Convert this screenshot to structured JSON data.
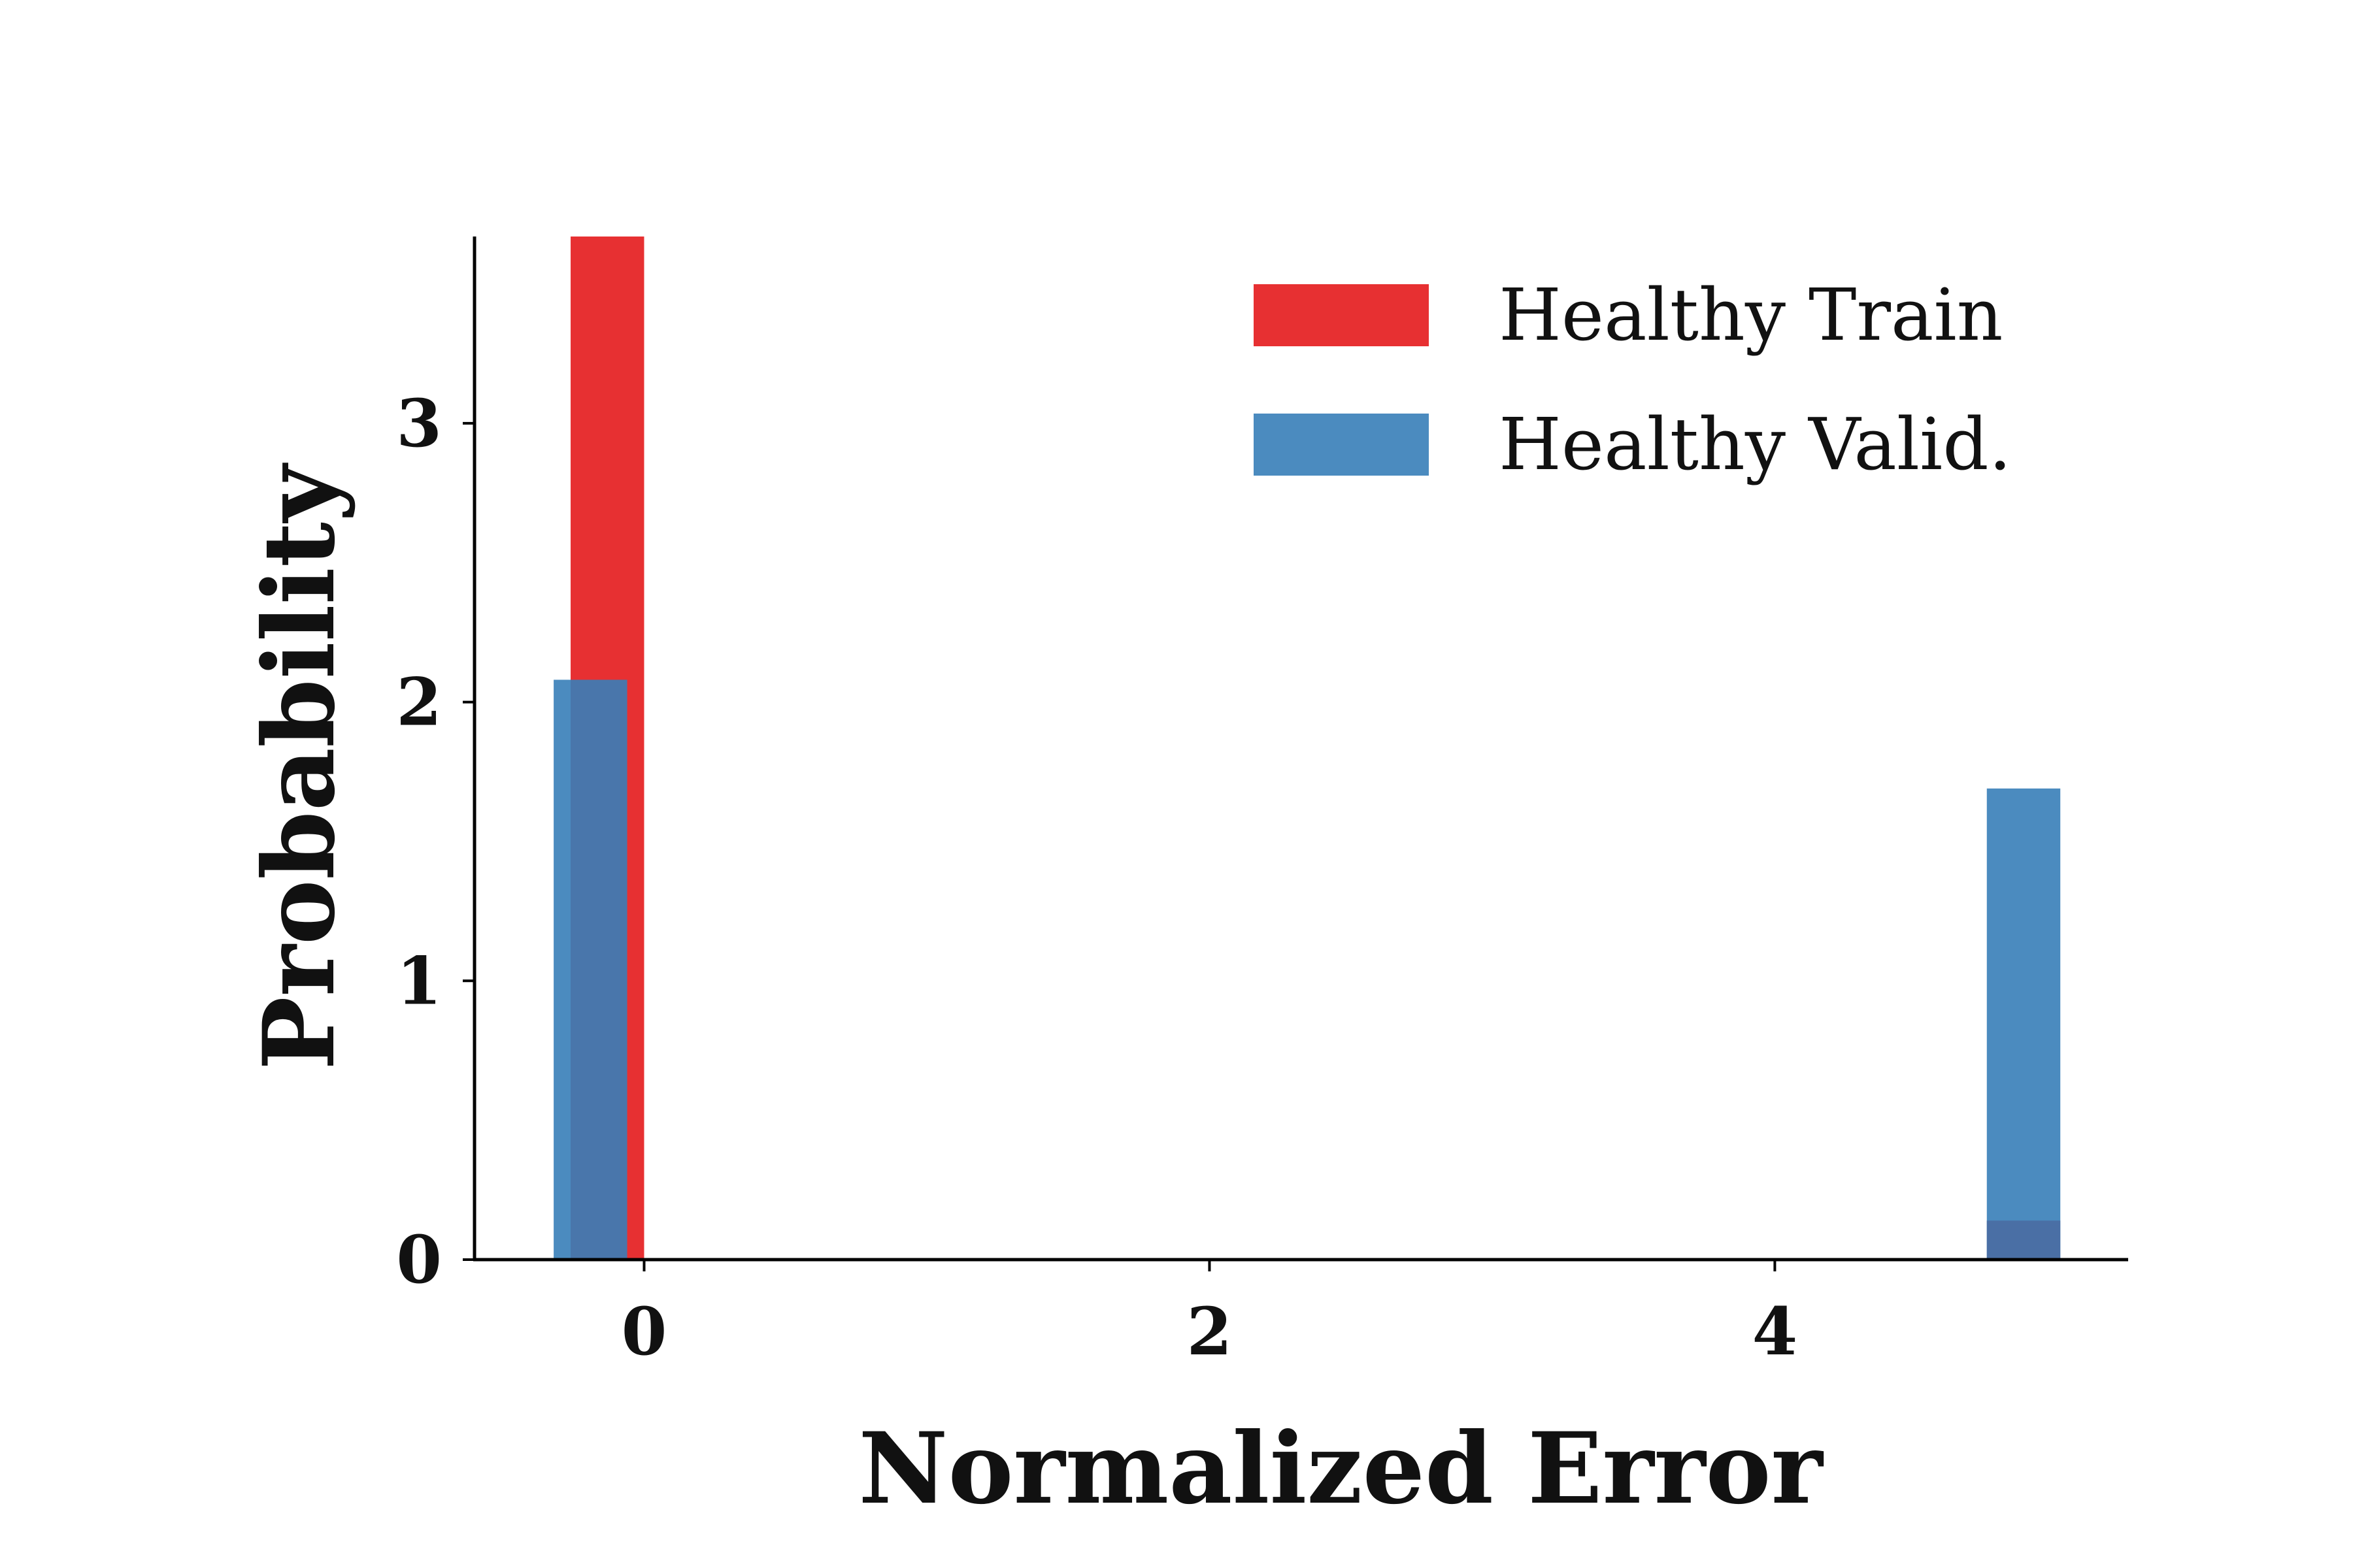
{
  "chart_data": {
    "type": "bar",
    "xlabel": "Normalized Error",
    "ylabel": "Probability",
    "xlim": [
      -0.6,
      5.25
    ],
    "ylim": [
      0,
      3.67
    ],
    "xticks": [
      {
        "value": 0,
        "label": "0"
      },
      {
        "value": 2,
        "label": "2"
      },
      {
        "value": 4,
        "label": "4"
      }
    ],
    "yticks": [
      {
        "value": 0,
        "label": "0"
      },
      {
        "value": 1,
        "label": "1"
      },
      {
        "value": 2,
        "label": "2"
      },
      {
        "value": 3,
        "label": "3"
      }
    ],
    "legend_position": "top-right",
    "grid": false,
    "series": [
      {
        "name": "Healthy Train",
        "color": "#e41a1c",
        "opacity": 0.9,
        "bins": [
          {
            "x0": -0.26,
            "x1": 0.0,
            "value": 3.67
          },
          {
            "x0": 4.75,
            "x1": 5.01,
            "value": 0.0
          }
        ]
      },
      {
        "name": "Healthy Valid.",
        "color": "#377eb8",
        "opacity": 0.9,
        "bins": [
          {
            "x0": -0.32,
            "x1": -0.06,
            "value": 2.08
          },
          {
            "x0": 4.75,
            "x1": 5.01,
            "value": 1.69
          }
        ]
      }
    ],
    "overlay_bins": [
      {
        "x0": 4.75,
        "x1": 5.01,
        "value": 0.14,
        "color": "#4a6fa5"
      }
    ]
  }
}
